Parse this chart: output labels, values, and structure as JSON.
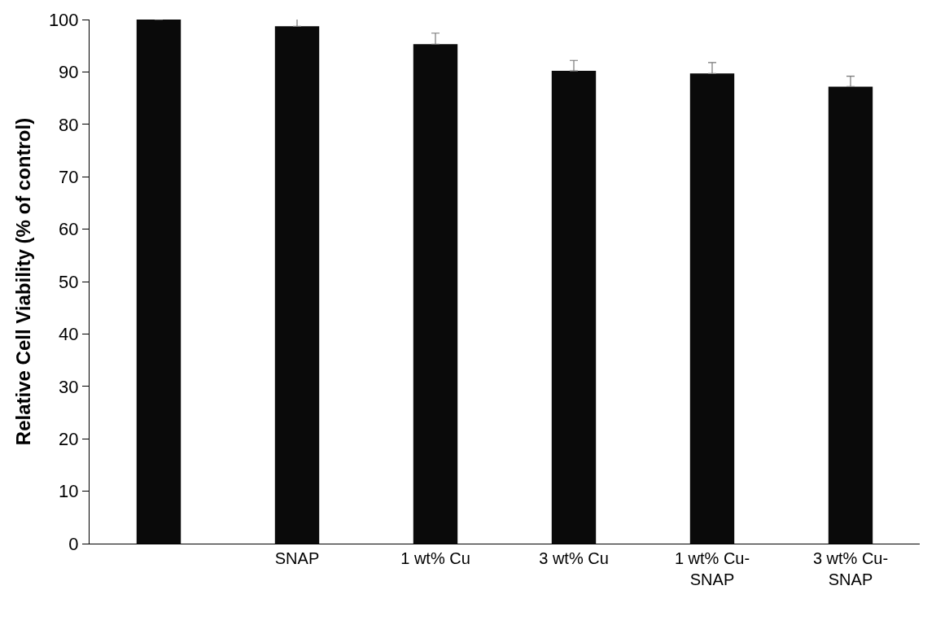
{
  "chart_data": {
    "type": "bar",
    "ylabel": "Relative Cell Viability (% of control)",
    "categories": [
      null,
      "SNAP",
      "1 wt% Cu",
      "3 wt% Cu",
      "1 wt% Cu-\nSNAP",
      "3 wt% Cu-\nSNAP"
    ],
    "values": [
      100,
      98.7,
      95.3,
      90.2,
      89.7,
      87.2
    ],
    "errors": [
      null,
      1.5,
      2.1,
      2.0,
      2.1,
      2.0
    ],
    "color": "#0a0a0a",
    "ylim": [
      0,
      100
    ],
    "yticks": [
      0,
      10,
      20,
      30,
      40,
      50,
      60,
      70,
      80,
      90,
      100
    ]
  }
}
